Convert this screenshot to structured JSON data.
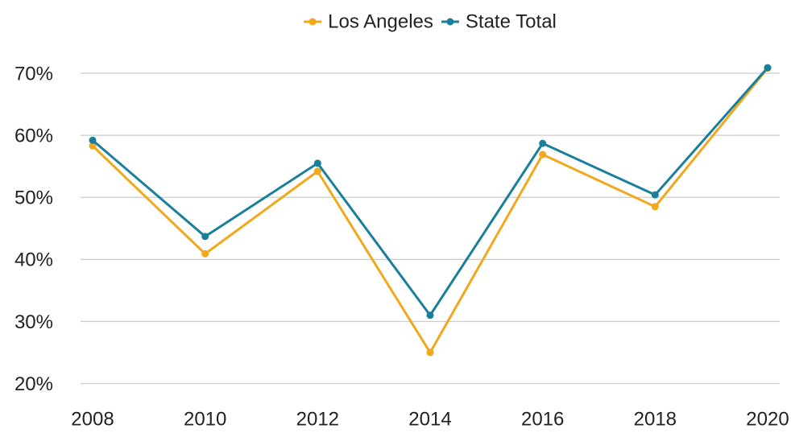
{
  "chart_data": {
    "type": "line",
    "categories": [
      "2008",
      "2010",
      "2012",
      "2014",
      "2016",
      "2018",
      "2020"
    ],
    "series": [
      {
        "name": "Los Angeles",
        "color": "#f2a81d",
        "values": [
          58.3,
          40.9,
          54.2,
          25.0,
          56.9,
          48.5,
          70.8
        ]
      },
      {
        "name": "State Total",
        "color": "#1a7f9a",
        "values": [
          59.2,
          43.7,
          55.5,
          31.0,
          58.7,
          50.4,
          70.9
        ]
      }
    ],
    "ylim": [
      18,
      72
    ],
    "yticks": [
      {
        "value": 20,
        "label": "20%"
      },
      {
        "value": 30,
        "label": "30%"
      },
      {
        "value": 40,
        "label": "40%"
      },
      {
        "value": 50,
        "label": "50%"
      },
      {
        "value": 60,
        "label": "60%"
      },
      {
        "value": 70,
        "label": "70%"
      }
    ],
    "grid": true,
    "legend": "top"
  }
}
